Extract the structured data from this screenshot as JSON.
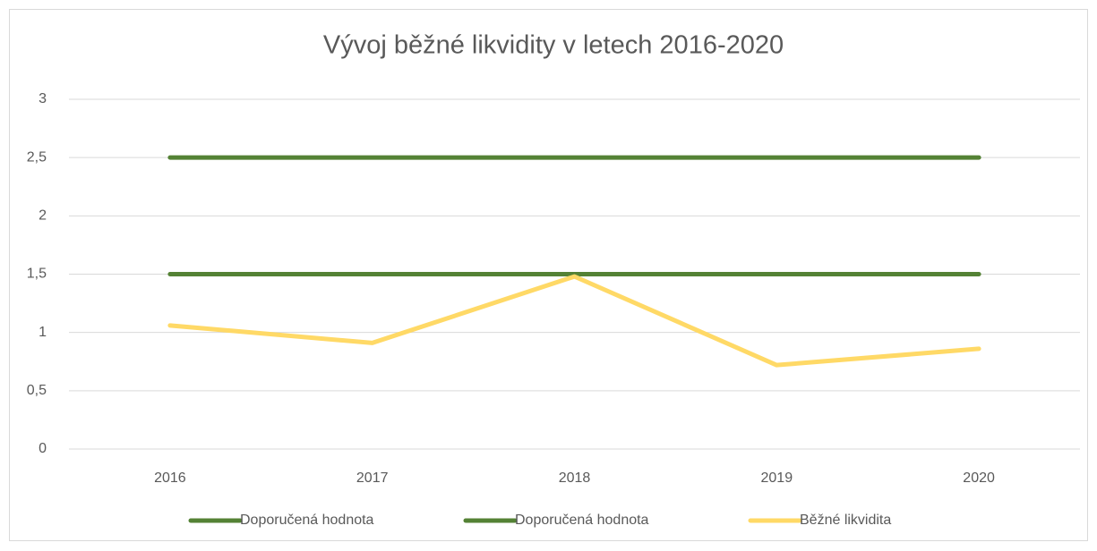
{
  "chart_data": {
    "type": "line",
    "title": "Vývoj běžné likvidity v letech 2016-2020",
    "categories": [
      "2016",
      "2017",
      "2018",
      "2019",
      "2020"
    ],
    "series": [
      {
        "name": "Doporučená hodnota",
        "color": "#548235",
        "values": [
          2.5,
          2.5,
          2.5,
          2.5,
          2.5
        ]
      },
      {
        "name": "Doporučená hodnota",
        "color": "#548235",
        "values": [
          1.5,
          1.5,
          1.5,
          1.5,
          1.5
        ]
      },
      {
        "name": "Běžné likvidita",
        "color": "#ffd966",
        "values": [
          1.06,
          0.91,
          1.48,
          0.72,
          0.86
        ]
      }
    ],
    "ylim": [
      0,
      3
    ],
    "yticks": [
      0,
      {
        "value": 0.5,
        "label": "0,5"
      },
      1,
      {
        "value": 1.5,
        "label": "1,5"
      },
      2,
      {
        "value": 2.5,
        "label": "2,5"
      },
      3
    ],
    "grid": true,
    "legend": "bottom"
  }
}
